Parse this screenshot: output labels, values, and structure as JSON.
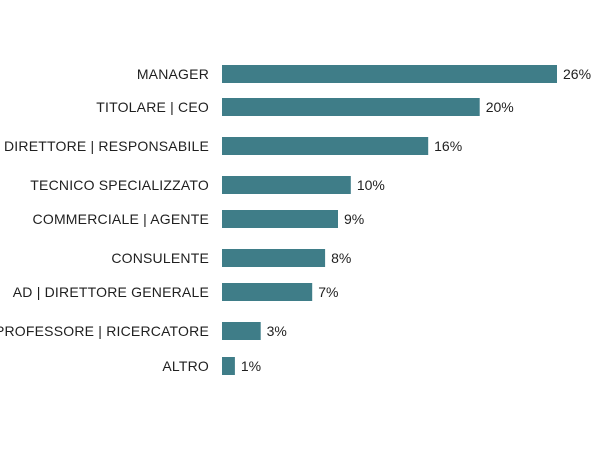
{
  "chart_data": {
    "type": "bar",
    "orientation": "horizontal",
    "categories": [
      "MANAGER",
      "TITOLARE | CEO",
      "DIRETTORE | RESPONSABILE",
      "TECNICO SPECIALIZZATO",
      "COMMERCIALE | AGENTE",
      "CONSULENTE",
      "AD | DIRETTORE GENERALE",
      "PROFESSORE | RICERCATORE",
      "ALTRO"
    ],
    "values": [
      26,
      20,
      16,
      10,
      9,
      8,
      7,
      3,
      1
    ],
    "value_labels": [
      "26%",
      "20%",
      "16%",
      "10%",
      "9%",
      "8%",
      "7%",
      "3%",
      "1%"
    ],
    "unit": "%",
    "title": "",
    "xlabel": "",
    "ylabel": "",
    "xlim": [
      0,
      26
    ],
    "grid": false,
    "legend": "none",
    "bar_color": "#3f7d88",
    "text_color": "#1f1f1f"
  }
}
